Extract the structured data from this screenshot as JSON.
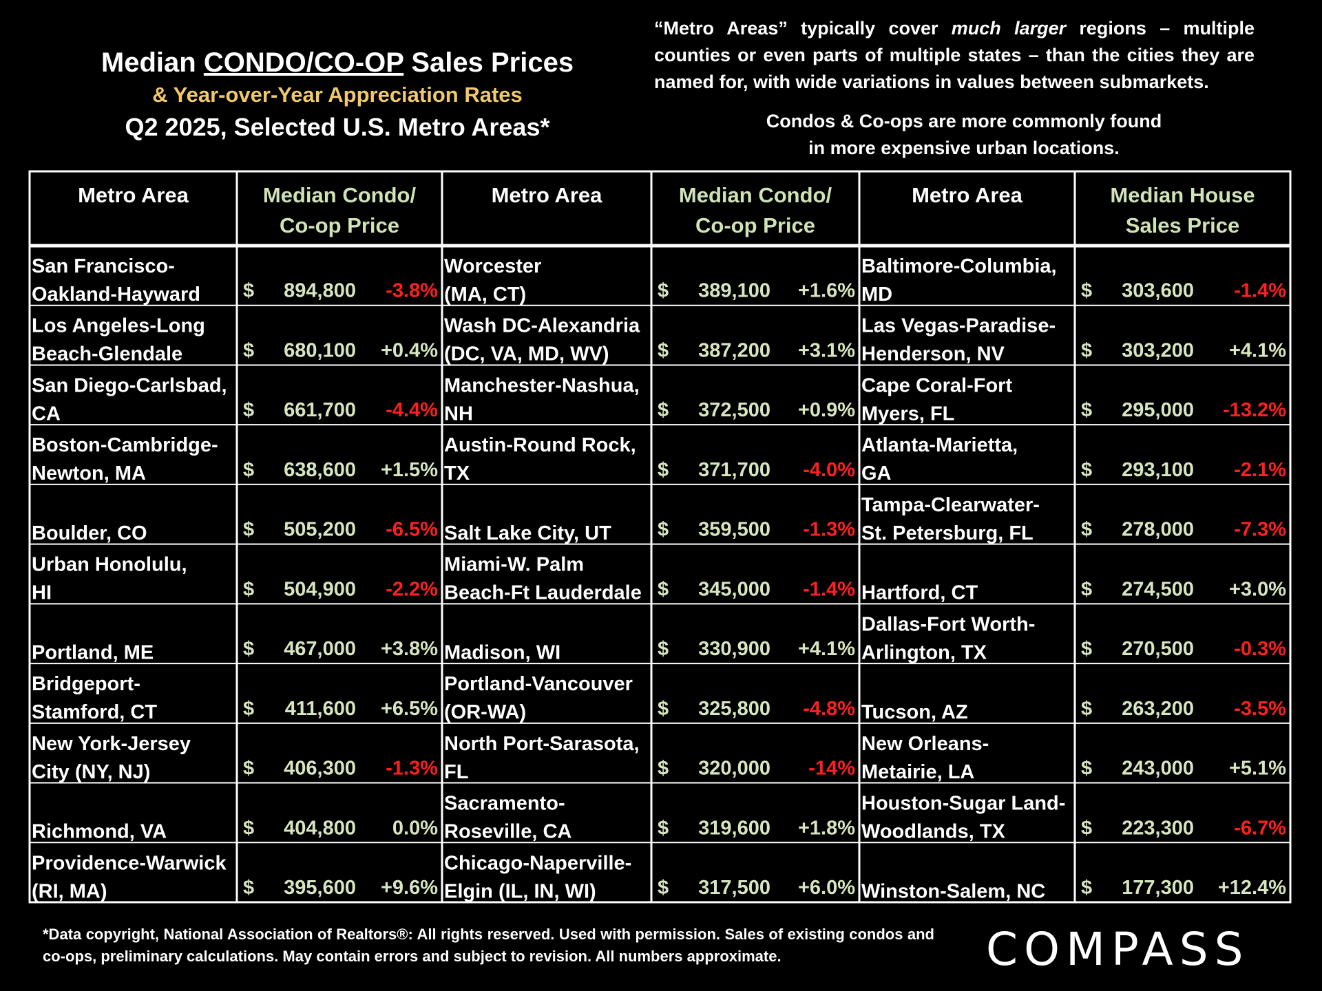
{
  "title": {
    "line1_pre": "Median ",
    "line1_underlined": "CONDO/CO-OP",
    "line1_post": " Sales Prices",
    "line2": "& Year-over-Year Appreciation Rates",
    "line3": "Q2 2025, Selected U.S. Metro Areas*"
  },
  "note_top": {
    "part1": "“Metro Areas” typically cover ",
    "italic": "much larger",
    "part2": " regions – multiple counties or even parts of multiple states – than the cities they are named for, with wide variations in values between submarkets."
  },
  "note_mid": {
    "line1": "Condos & Co-ops are more commonly found",
    "line2": "in more expensive urban locations."
  },
  "colors": {
    "positive": "#d8e6c0",
    "negative": "#ff1f1f",
    "header_price": "#cfe3b6",
    "grid": "#ffffff"
  },
  "chart_data": {
    "type": "table",
    "currency_symbol": "$",
    "columns": [
      {
        "metro_header": "Metro Area",
        "price_header": [
          "Median Condo/",
          "Co-op Price"
        ],
        "rows": [
          {
            "metro": [
              "San Francisco-",
              "Oakland-Hayward"
            ],
            "price": "894,800",
            "change": "-3.8%",
            "neg": true
          },
          {
            "metro": [
              "Los Angeles-Long",
              "Beach-Glendale"
            ],
            "price": "680,100",
            "change": "+0.4%",
            "neg": false
          },
          {
            "metro": [
              "San Diego-Carlsbad,",
              "CA"
            ],
            "price": "661,700",
            "change": "-4.4%",
            "neg": true
          },
          {
            "metro": [
              "Boston-Cambridge-",
              "Newton, MA"
            ],
            "price": "638,600",
            "change": "+1.5%",
            "neg": false
          },
          {
            "metro": [
              "",
              "Boulder, CO"
            ],
            "price": "505,200",
            "change": "-6.5%",
            "neg": true
          },
          {
            "metro": [
              "Urban Honolulu,",
              "HI"
            ],
            "price": "504,900",
            "change": "-2.2%",
            "neg": true
          },
          {
            "metro": [
              "",
              "Portland, ME"
            ],
            "price": "467,000",
            "change": "+3.8%",
            "neg": false
          },
          {
            "metro": [
              "Bridgeport-",
              "Stamford, CT"
            ],
            "price": "411,600",
            "change": "+6.5%",
            "neg": false
          },
          {
            "metro": [
              "New York-Jersey",
              "City (NY, NJ)"
            ],
            "price": "406,300",
            "change": "-1.3%",
            "neg": true
          },
          {
            "metro": [
              "",
              "Richmond, VA"
            ],
            "price": "404,800",
            "change": "0.0%",
            "neg": false
          },
          {
            "metro": [
              "Providence-Warwick",
              "(RI, MA)"
            ],
            "price": "395,600",
            "change": "+9.6%",
            "neg": false
          }
        ]
      },
      {
        "metro_header": "Metro Area",
        "price_header": [
          "Median Condo/",
          "Co-op Price"
        ],
        "rows": [
          {
            "metro": [
              "Worcester",
              "(MA, CT)"
            ],
            "price": "389,100",
            "change": "+1.6%",
            "neg": false
          },
          {
            "metro": [
              "Wash DC-Alexandria",
              " (DC, VA, MD, WV)"
            ],
            "price": "387,200",
            "change": "+3.1%",
            "neg": false
          },
          {
            "metro": [
              "Manchester-Nashua,",
              "NH"
            ],
            "price": "372,500",
            "change": "+0.9%",
            "neg": false
          },
          {
            "metro": [
              "Austin-Round Rock,",
              "TX"
            ],
            "price": "371,700",
            "change": "-4.0%",
            "neg": true
          },
          {
            "metro": [
              "",
              "Salt Lake City, UT"
            ],
            "price": "359,500",
            "change": "-1.3%",
            "neg": true
          },
          {
            "metro": [
              "Miami-W. Palm",
              "Beach-Ft Lauderdale"
            ],
            "price": "345,000",
            "change": "-1.4%",
            "neg": true
          },
          {
            "metro": [
              "",
              "Madison, WI"
            ],
            "price": "330,900",
            "change": "+4.1%",
            "neg": false
          },
          {
            "metro": [
              "Portland-Vancouver",
              "(OR-WA)"
            ],
            "price": "325,800",
            "change": "-4.8%",
            "neg": true
          },
          {
            "metro": [
              "North Port-Sarasota,",
              "FL"
            ],
            "price": "320,000",
            "change": "-14%",
            "neg": true
          },
          {
            "metro": [
              "Sacramento-",
              "Roseville, CA"
            ],
            "price": "319,600",
            "change": "+1.8%",
            "neg": false
          },
          {
            "metro": [
              "Chicago-Naperville-",
              "Elgin (IL, IN, WI)"
            ],
            "price": "317,500",
            "change": "+6.0%",
            "neg": false
          }
        ]
      },
      {
        "metro_header": "Metro Area",
        "price_header": [
          "Median House",
          "Sales Price"
        ],
        "rows": [
          {
            "metro": [
              "Baltimore-Columbia,",
              "MD"
            ],
            "price": "303,600",
            "change": "-1.4%",
            "neg": true
          },
          {
            "metro": [
              "Las Vegas-Paradise-",
              "Henderson, NV"
            ],
            "price": "303,200",
            "change": "+4.1%",
            "neg": false
          },
          {
            "metro": [
              "Cape Coral-Fort",
              "Myers, FL"
            ],
            "price": "295,000",
            "change": "-13.2%",
            "neg": true
          },
          {
            "metro": [
              "Atlanta-Marietta,",
              "GA"
            ],
            "price": "293,100",
            "change": "-2.1%",
            "neg": true
          },
          {
            "metro": [
              "Tampa-Clearwater-",
              "St. Petersburg, FL"
            ],
            "price": "278,000",
            "change": "-7.3%",
            "neg": true
          },
          {
            "metro": [
              "",
              "Hartford, CT"
            ],
            "price": "274,500",
            "change": "+3.0%",
            "neg": false
          },
          {
            "metro": [
              "Dallas-Fort Worth-",
              "Arlington, TX"
            ],
            "price": "270,500",
            "change": "-0.3%",
            "neg": true
          },
          {
            "metro": [
              "",
              "Tucson, AZ"
            ],
            "price": "263,200",
            "change": "-3.5%",
            "neg": true
          },
          {
            "metro": [
              "New Orleans-",
              "Metairie, LA"
            ],
            "price": "243,000",
            "change": "+5.1%",
            "neg": false
          },
          {
            "metro": [
              "Houston-Sugar Land-",
              "Woodlands, TX"
            ],
            "price": "223,300",
            "change": "-6.7%",
            "neg": true
          },
          {
            "metro": [
              "",
              "Winston-Salem, NC"
            ],
            "price": "177,300",
            "change": "+12.4%",
            "neg": false
          }
        ]
      }
    ]
  },
  "footnote": "*Data copyright, National Association of Realtors®: All rights reserved. Used with permission. Sales of existing condos and co-ops, preliminary calculations. May contain errors and subject to revision. All numbers approximate.",
  "logo": "COMPASS"
}
